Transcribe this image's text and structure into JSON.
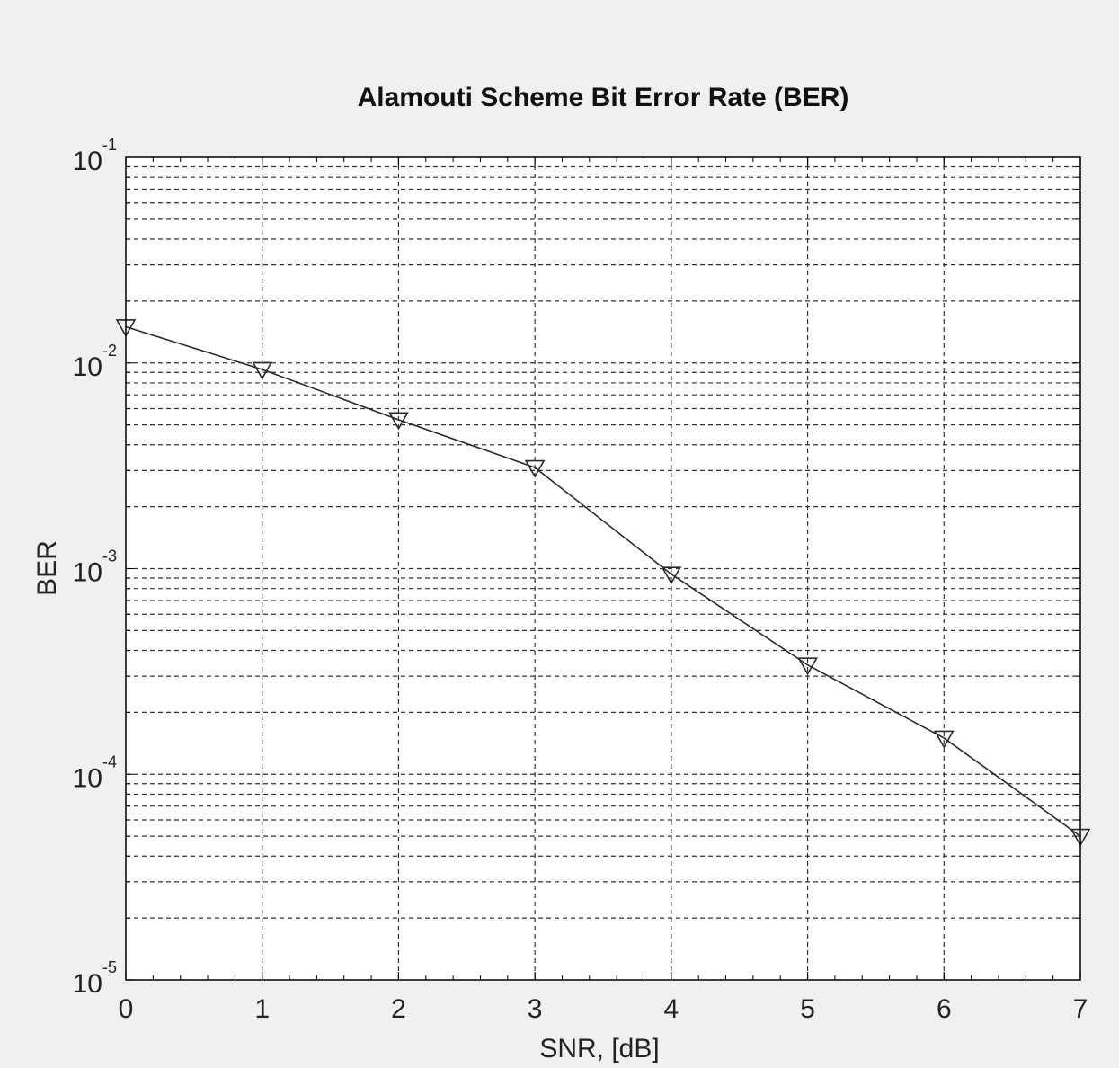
{
  "chart_data": {
    "type": "line",
    "title": "Alamouti Scheme Bit Error Rate (BER)",
    "xlabel": "SNR, [dB]",
    "ylabel": "BER",
    "xlim": [
      0,
      7
    ],
    "ylim": [
      1e-05,
      0.1
    ],
    "yscale": "log",
    "grid": true,
    "marker": "triangle-down",
    "x_ticks": [
      "0",
      "1",
      "2",
      "3",
      "4",
      "5",
      "6",
      "7"
    ],
    "y_ticks": [
      {
        "base": "10",
        "exp": "-1",
        "value": 0.1
      },
      {
        "base": "10",
        "exp": "-2",
        "value": 0.01
      },
      {
        "base": "10",
        "exp": "-3",
        "value": 0.001
      },
      {
        "base": "10",
        "exp": "-4",
        "value": 0.0001
      },
      {
        "base": "10",
        "exp": "-5",
        "value": 1e-05
      }
    ],
    "x": [
      0,
      1,
      2,
      3,
      4,
      5,
      6,
      7
    ],
    "series": [
      {
        "values": [
          0.015,
          0.0093,
          0.0053,
          0.0031,
          0.00094,
          0.00034,
          0.00015,
          5e-05
        ]
      }
    ],
    "colors": {
      "line": "#2a2a2a",
      "grid": "#333333",
      "axes": "#000000",
      "background": "#f0f0f0",
      "plot_background": "#ffffff"
    }
  }
}
